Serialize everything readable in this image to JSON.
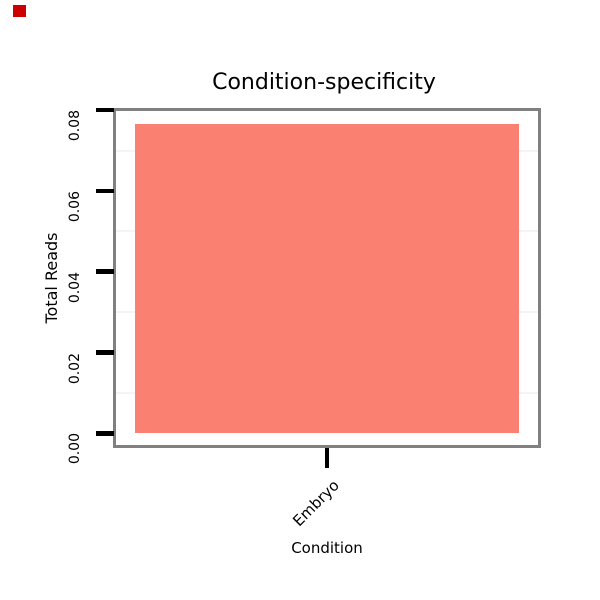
{
  "window": {
    "background_color": "#ffffff"
  },
  "marker": {
    "color": "#cc0000"
  },
  "chart_data": {
    "type": "bar",
    "title": "Condition-specificity",
    "xlabel": "Condition",
    "ylabel": "Total Reads",
    "categories": [
      "Embryo"
    ],
    "values": [
      0.0765
    ],
    "ylim": [
      0,
      0.08
    ],
    "ytick_values": [
      0,
      0.02,
      0.04,
      0.06,
      0.08
    ],
    "ytick_labels": [
      "0.00",
      "0.02",
      "0.04",
      "0.06",
      "0.08"
    ],
    "minor_gridline_values": [
      0.01,
      0.03,
      0.05,
      0.07
    ],
    "bar_color": "#FA8072",
    "panel_border_color": "#808080",
    "minor_gridline_color": "#f4f4f4",
    "tick_color": "#000000",
    "grid": "minor horizontal only",
    "legend_position": "none"
  }
}
